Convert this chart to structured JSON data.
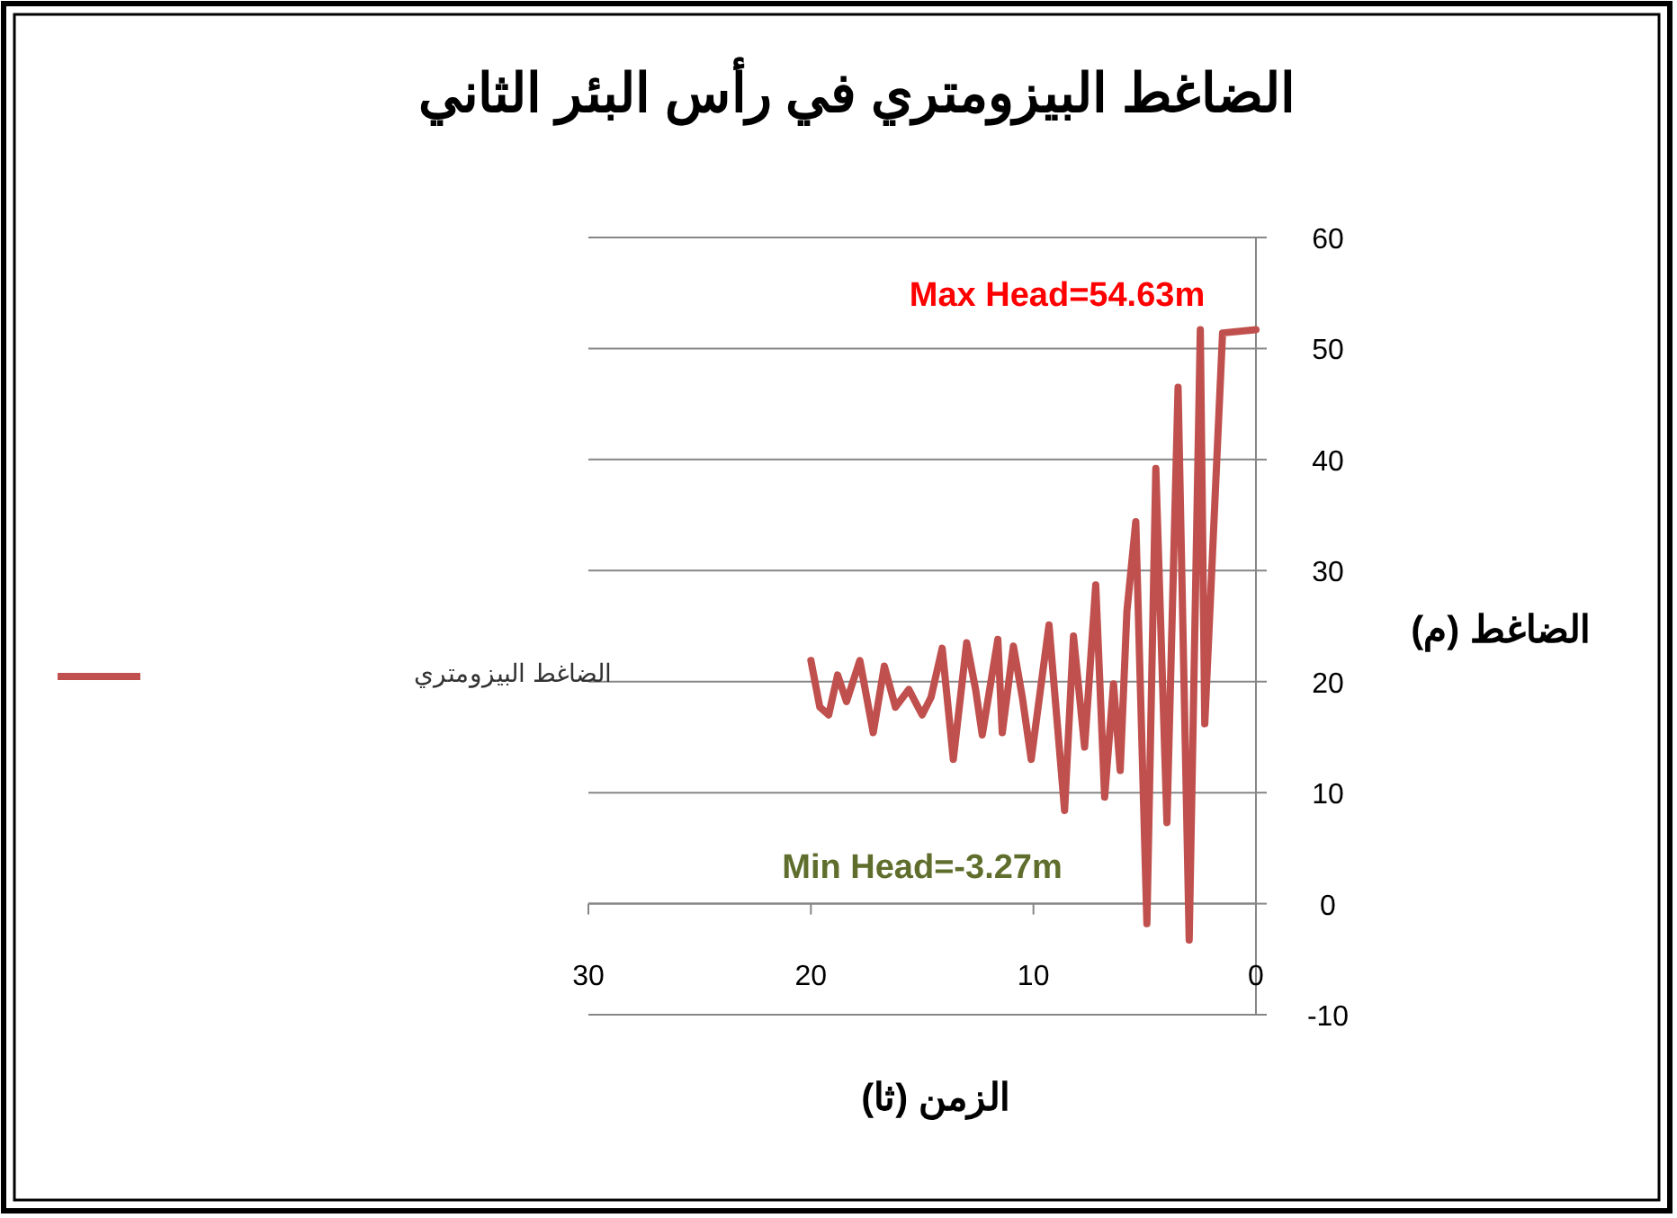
{
  "chart_data": {
    "type": "line",
    "title": "الضاغط البيزومتري في رأس البئر الثاني",
    "xlabel": "الزمن (ثا)",
    "ylabel": "الضاغط (م)",
    "xlim": [
      30,
      0
    ],
    "xticks": [
      30,
      20,
      10,
      0
    ],
    "ylim": [
      -10,
      60
    ],
    "yticks": [
      -10,
      0,
      10,
      20,
      30,
      40,
      50,
      60
    ],
    "grid": "y",
    "legend": "left",
    "marker": "none",
    "line_style": "solid",
    "series": [
      {
        "name": "الضاغط البيزومتري",
        "color": "#c0504d",
        "x": [
          20.0,
          19.6,
          19.2,
          18.8,
          18.4,
          17.8,
          17.2,
          16.7,
          16.2,
          15.6,
          15.0,
          14.6,
          14.1,
          13.6,
          13.0,
          12.6,
          12.3,
          11.6,
          11.4,
          10.9,
          10.5,
          10.1,
          9.3,
          8.6,
          8.2,
          7.7,
          7.2,
          6.8,
          6.4,
          6.1,
          5.8,
          5.4,
          4.9,
          4.5,
          4.0,
          3.5,
          3.0,
          2.5,
          2.3,
          1.5,
          0
        ],
        "values": [
          21.9,
          17.7,
          17.0,
          20.6,
          18.2,
          21.9,
          15.4,
          21.4,
          17.7,
          19.3,
          17.0,
          18.6,
          23.0,
          13.0,
          23.5,
          19.3,
          15.2,
          23.8,
          15.4,
          23.2,
          18.6,
          13.0,
          25.1,
          8.4,
          24.1,
          14.1,
          28.7,
          9.6,
          19.8,
          12.0,
          26.3,
          34.4,
          -1.8,
          39.2,
          7.3,
          46.5,
          -3.27,
          51.7,
          16.2,
          51.4,
          51.7
        ]
      }
    ],
    "annotations": [
      "Max Head=54.63m",
      "Min Head=-3.27m"
    ]
  }
}
